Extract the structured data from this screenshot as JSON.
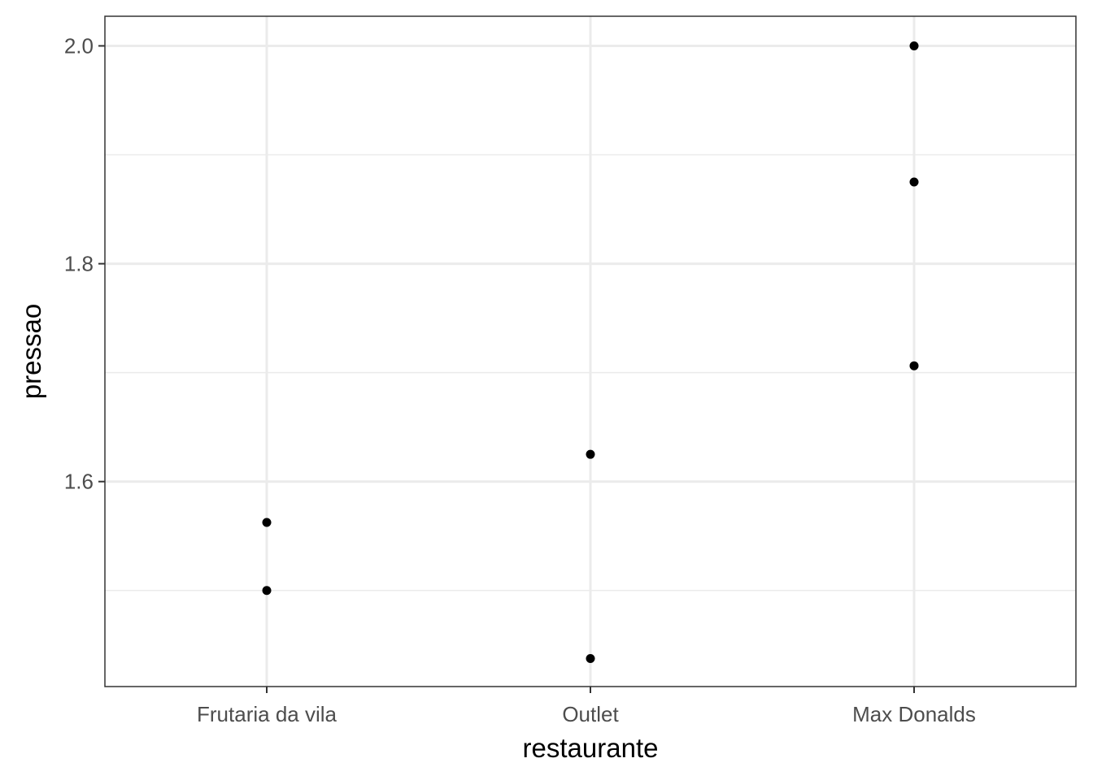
{
  "chart_data": {
    "type": "scatter",
    "title": "",
    "xlabel": "restaurante",
    "ylabel": "pressao",
    "categories": [
      "Frutaria da vila",
      "Outlet",
      "Max Donalds"
    ],
    "points": [
      {
        "x": "Frutaria da vila",
        "y": 1.5625
      },
      {
        "x": "Frutaria da vila",
        "y": 1.5
      },
      {
        "x": "Outlet",
        "y": 1.625
      },
      {
        "x": "Outlet",
        "y": 1.4375
      },
      {
        "x": "Max Donalds",
        "y": 2.0
      },
      {
        "x": "Max Donalds",
        "y": 1.875
      },
      {
        "x": "Max Donalds",
        "y": 1.7063
      }
    ],
    "ylim": [
      1.4118,
      2.0272
    ],
    "yticks": [
      1.6,
      1.8,
      2.0
    ],
    "ytick_labels": [
      "1.6",
      "1.8",
      "2.0"
    ],
    "yminor": [
      1.5,
      1.7,
      1.9
    ],
    "grid": true,
    "theme": "bw",
    "point_color": "#000000",
    "grid_color": "#ebebeb",
    "border_color": "#333333"
  }
}
